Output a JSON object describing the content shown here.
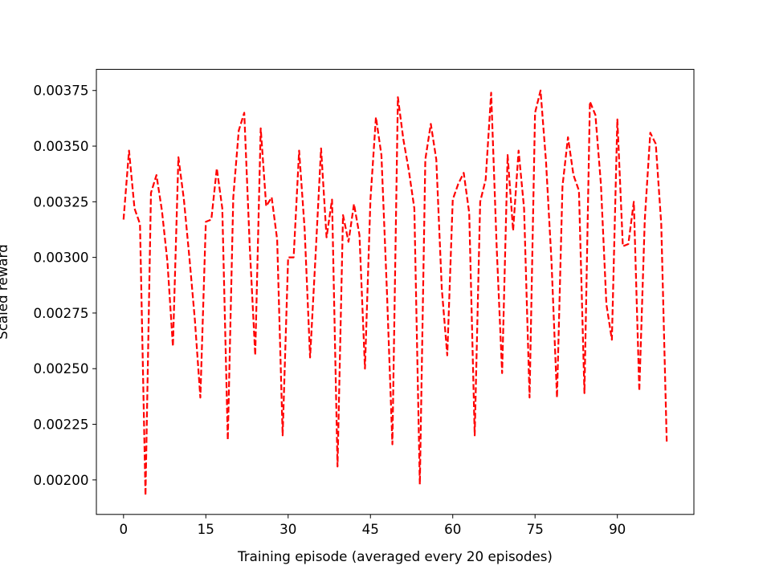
{
  "chart_data": {
    "type": "line",
    "title": "",
    "xlabel": "Training episode (averaged every 20 episodes)",
    "ylabel": "Scaled reward",
    "xlim": [
      -4.95,
      103.95
    ],
    "ylim": [
      0.001845,
      0.003845
    ],
    "xticks": [
      0,
      15,
      30,
      45,
      60,
      75,
      90
    ],
    "xtick_labels": [
      "0",
      "15",
      "30",
      "45",
      "60",
      "75",
      "90"
    ],
    "yticks": [
      0.002,
      0.00225,
      0.0025,
      0.00275,
      0.003,
      0.00325,
      0.0035,
      0.00375
    ],
    "ytick_labels": [
      "0.00200",
      "0.00225",
      "0.00250",
      "0.00275",
      "0.00300",
      "0.00325",
      "0.00350",
      "0.00375"
    ],
    "grid": false,
    "series": [
      {
        "color": "#ff0000",
        "linestyle": "dashed",
        "x": [
          0,
          1,
          2,
          3,
          4,
          5,
          6,
          7,
          8,
          9,
          10,
          11,
          12,
          13,
          14,
          15,
          16,
          17,
          18,
          19,
          20,
          21,
          22,
          23,
          24,
          25,
          26,
          27,
          28,
          29,
          30,
          31,
          32,
          33,
          34,
          35,
          36,
          37,
          38,
          39,
          40,
          41,
          42,
          43,
          44,
          45,
          46,
          47,
          48,
          49,
          50,
          51,
          52,
          53,
          54,
          55,
          56,
          57,
          58,
          59,
          60,
          61,
          62,
          63,
          64,
          65,
          66,
          67,
          68,
          69,
          70,
          71,
          72,
          73,
          74,
          75,
          76,
          77,
          78,
          79,
          80,
          81,
          82,
          83,
          84,
          85,
          86,
          87,
          88,
          89,
          90,
          91,
          92,
          93,
          94,
          95,
          96,
          97,
          98,
          99
        ],
        "values": [
          0.00317,
          0.00348,
          0.00322,
          0.00315,
          0.00193,
          0.00329,
          0.00337,
          0.00321,
          0.00298,
          0.0026,
          0.00345,
          0.00326,
          0.003,
          0.00272,
          0.00237,
          0.00316,
          0.00317,
          0.0034,
          0.00322,
          0.00218,
          0.00327,
          0.00357,
          0.00365,
          0.00305,
          0.00256,
          0.00358,
          0.00323,
          0.00327,
          0.00308,
          0.0022,
          0.003,
          0.003,
          0.00348,
          0.00313,
          0.00255,
          0.00301,
          0.00349,
          0.00309,
          0.00326,
          0.00206,
          0.00319,
          0.00307,
          0.00324,
          0.0031,
          0.0025,
          0.00326,
          0.00363,
          0.00346,
          0.00285,
          0.00216,
          0.00372,
          0.00353,
          0.00339,
          0.00322,
          0.00198,
          0.00344,
          0.0036,
          0.00344,
          0.00286,
          0.00256,
          0.00326,
          0.00333,
          0.00338,
          0.0032,
          0.0022,
          0.00325,
          0.00335,
          0.00374,
          0.00305,
          0.00248,
          0.00346,
          0.00312,
          0.00348,
          0.00322,
          0.00237,
          0.00365,
          0.00375,
          0.00343,
          0.00298,
          0.00237,
          0.00332,
          0.00354,
          0.00337,
          0.0033,
          0.00239,
          0.0037,
          0.00364,
          0.00333,
          0.00279,
          0.00263,
          0.00362,
          0.00305,
          0.00306,
          0.00325,
          0.0024,
          0.00317,
          0.00356,
          0.00351,
          0.00315,
          0.00217
        ]
      }
    ]
  }
}
